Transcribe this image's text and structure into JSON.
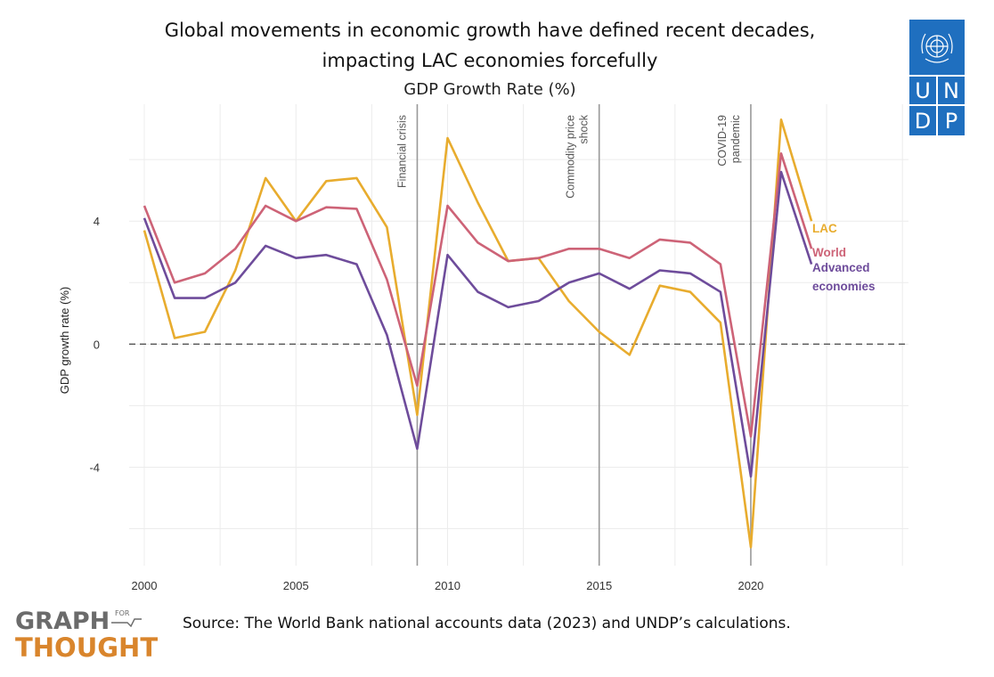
{
  "header": {
    "title_line1": "Global movements in economic growth have defined recent decades,",
    "title_line2": "impacting LAC economies forcefully",
    "subtitle": "GDP Growth Rate (%)"
  },
  "logo": {
    "letters": [
      "U",
      "N",
      "D",
      "P"
    ],
    "color": "#1f6fbf",
    "emblem": "un-emblem-icon"
  },
  "footer": {
    "brand_line1": "GRAPH",
    "brand_for": "FOR",
    "brand_line2": "THOUGHT",
    "source": "Source: The World Bank national accounts data (2023) and UNDP’s calculations."
  },
  "chart_data": {
    "type": "line",
    "ylabel": "GDP growth rate (%)",
    "xlabel": "",
    "xlim": [
      1999.5,
      2025.2
    ],
    "ylim": [
      -7.2,
      7.8
    ],
    "x_ticks": [
      2000,
      2005,
      2010,
      2015,
      2020
    ],
    "y_ticks": [
      -4,
      0,
      4
    ],
    "grid": true,
    "zero_line": "dashed",
    "x": [
      2000,
      2001,
      2002,
      2003,
      2004,
      2005,
      2006,
      2007,
      2008,
      2009,
      2010,
      2011,
      2012,
      2013,
      2014,
      2015,
      2016,
      2017,
      2018,
      2019,
      2020,
      2021,
      2022
    ],
    "series": [
      {
        "name": "LAC",
        "color": "#e8ac2e",
        "values": [
          3.7,
          0.2,
          0.4,
          2.4,
          5.4,
          4.0,
          5.3,
          5.4,
          3.8,
          -2.3,
          6.7,
          4.6,
          2.7,
          2.8,
          1.4,
          0.4,
          -0.35,
          1.9,
          1.7,
          0.7,
          -6.6,
          7.3,
          4.0
        ]
      },
      {
        "name": "World",
        "color": "#cd6377",
        "values": [
          4.5,
          2.0,
          2.3,
          3.1,
          4.5,
          4.0,
          4.45,
          4.4,
          2.1,
          -1.35,
          4.5,
          3.3,
          2.7,
          2.8,
          3.1,
          3.1,
          2.8,
          3.4,
          3.3,
          2.6,
          -3.0,
          6.2,
          3.1
        ]
      },
      {
        "name": "Advanced economies",
        "color": "#6e4c9b",
        "values": [
          4.1,
          1.5,
          1.5,
          2.0,
          3.2,
          2.8,
          2.9,
          2.6,
          0.3,
          -3.4,
          2.9,
          1.7,
          1.2,
          1.4,
          2.0,
          2.3,
          1.8,
          2.4,
          2.3,
          1.7,
          -4.3,
          5.6,
          2.6
        ]
      }
    ],
    "legend": [
      {
        "label": "LAC",
        "color": "#e8ac2e"
      },
      {
        "label": "World",
        "color": "#cd6377"
      },
      {
        "label": "Advanced",
        "color": "#6e4c9b"
      },
      {
        "label": "economies",
        "color": "#6e4c9b"
      }
    ],
    "annotations": [
      {
        "x": 2009,
        "lines": [
          "Financial crisis"
        ]
      },
      {
        "x": 2015,
        "lines": [
          "Commodity price",
          "shock"
        ]
      },
      {
        "x": 2020,
        "lines": [
          "COVID-19",
          "pandemic"
        ]
      }
    ]
  }
}
